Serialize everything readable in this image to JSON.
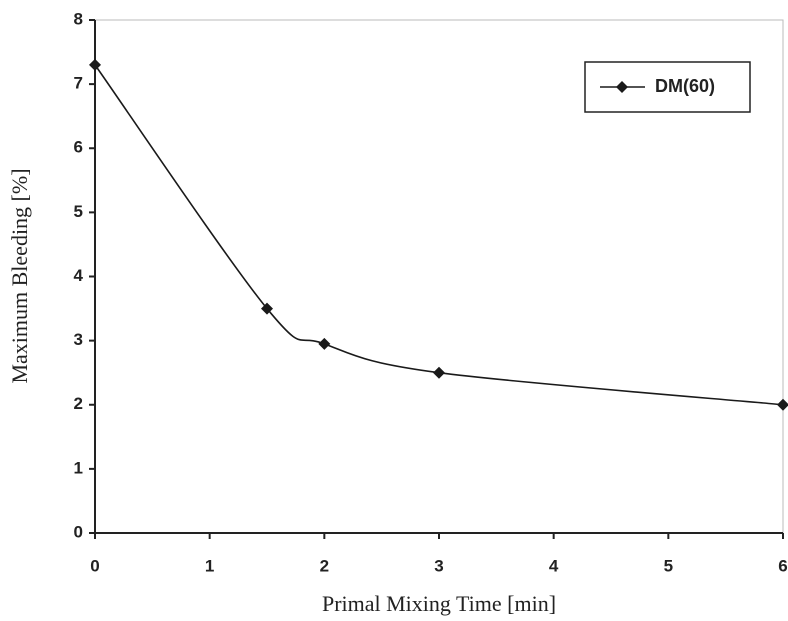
{
  "chart_data": {
    "type": "line",
    "xlabel": "Primal Mixing Time [min]",
    "ylabel": "Maximum Bleeding [%]",
    "x": [
      0,
      1.5,
      2,
      3,
      6
    ],
    "series": [
      {
        "name": "DM(60)",
        "color": "#1a1a1a",
        "values": [
          7.3,
          3.5,
          2.95,
          2.5,
          2.0
        ]
      }
    ],
    "xlim": [
      0,
      6
    ],
    "ylim": [
      0,
      8
    ],
    "xticks": [
      0,
      1,
      2,
      3,
      4,
      5,
      6
    ],
    "yticks": [
      0,
      1,
      2,
      3,
      4,
      5,
      6,
      7,
      8
    ],
    "smooth": true,
    "legend": "upper right"
  }
}
